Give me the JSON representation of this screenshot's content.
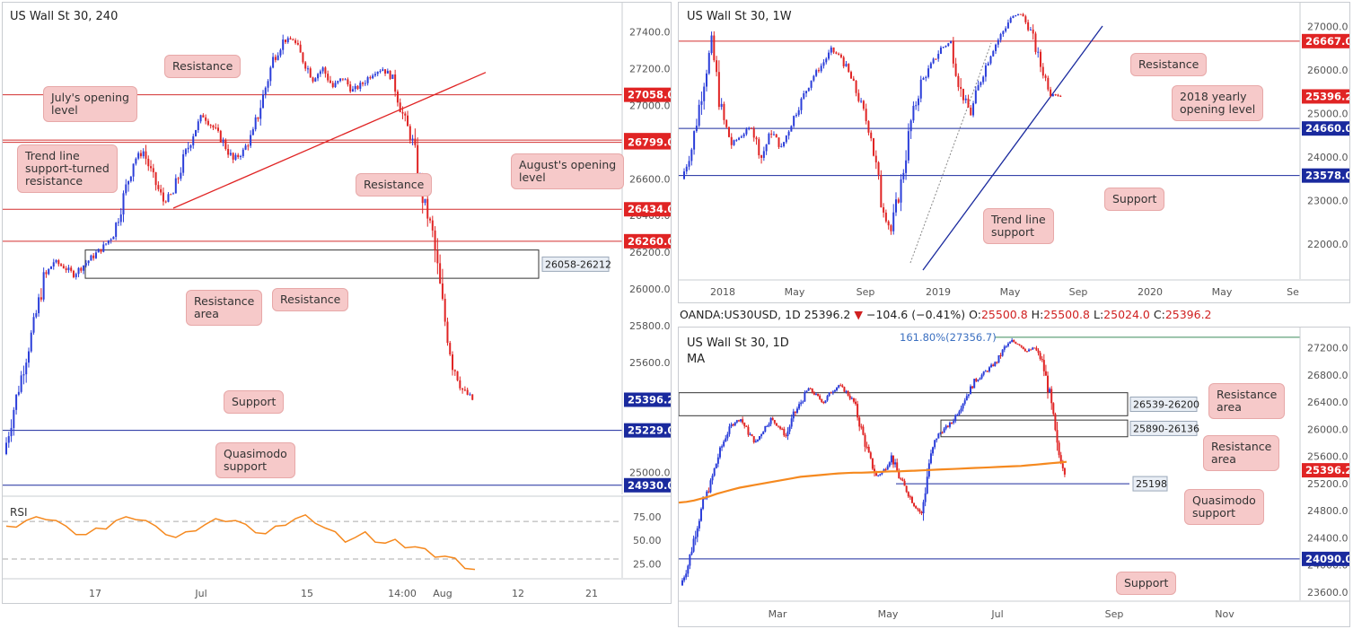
{
  "colors": {
    "up": "#2b3ed9",
    "down": "#e02424",
    "resistance": "#d32f2f",
    "support": "#1a2a9e",
    "ma": "#f5891f",
    "rsi": "#f5891f",
    "trend": "#e02424",
    "label_red": "#e02424",
    "label_blue": "#1a2a9e"
  },
  "chart_data": [
    {
      "id": "h4",
      "type": "line",
      "title": "US Wall St 30, 240",
      "ylim": [
        24880,
        27560
      ],
      "x_ticks": [
        "17",
        "Jul",
        "15",
        "14:00",
        "Aug",
        "12",
        "21"
      ],
      "y_ticks": [
        "27400.0",
        "27200.0",
        "27000.0",
        "26800.0",
        "26600.0",
        "26400.0",
        "26200.0",
        "26000.0",
        "25800.0",
        "25600.0",
        "25000.0"
      ],
      "levels": [
        {
          "value": 27058,
          "label": "27058.0",
          "kind": "resistance"
        },
        {
          "value": 26811,
          "label": "26811.0",
          "kind": "resistance"
        },
        {
          "value": 26799,
          "label": "26799.0",
          "kind": "resistance"
        },
        {
          "value": 26434,
          "label": "26434.0",
          "kind": "resistance"
        },
        {
          "value": 26260,
          "label": "26260.0",
          "kind": "resistance"
        },
        {
          "value": 25229,
          "label": "25229.0",
          "kind": "support"
        },
        {
          "value": 24930,
          "label": "24930.0",
          "kind": "support"
        }
      ],
      "current_price": {
        "value": 25396,
        "label": "25396.2"
      },
      "zone": {
        "label": "26058-26212",
        "low": 26058,
        "high": 26212
      },
      "series": [
        {
          "values": [
            25100,
            25350,
            25580,
            25800,
            26050,
            26150,
            26120,
            26080,
            26130,
            26180,
            26230,
            26300,
            26500,
            26700,
            26750,
            26600,
            26480,
            26520,
            26700,
            26850,
            26950,
            26880,
            26800,
            26700,
            26750,
            26850,
            27050,
            27250,
            27350,
            27360,
            27250,
            27150,
            27200,
            27100,
            27150,
            27080,
            27120,
            27180,
            27200,
            27150,
            26950,
            26800,
            26500,
            26300,
            25900,
            25600,
            25450,
            25396
          ]
        }
      ],
      "rsi": {
        "label": "RSI",
        "ylim": [
          10,
          95
        ],
        "ticks": [
          "75.00",
          "50.00",
          "25.00"
        ],
        "values": [
          62,
          66,
          70,
          72,
          74,
          70,
          62,
          58,
          55,
          60,
          64,
          70,
          72,
          74,
          70,
          62,
          58,
          52,
          56,
          62,
          66,
          70,
          72,
          70,
          64,
          60,
          56,
          62,
          68,
          72,
          74,
          70,
          62,
          56,
          50,
          52,
          56,
          50,
          46,
          48,
          44,
          42,
          38,
          34,
          32,
          28,
          22,
          18
        ]
      },
      "annotations": [
        {
          "text": "Resistance"
        },
        {
          "text": "July's opening\nlevel"
        },
        {
          "text": "Trend line\nsupport-turned\nresistance"
        },
        {
          "text": "Resistance"
        },
        {
          "text": "August's opening\nlevel"
        },
        {
          "text": "Resistance\narea"
        },
        {
          "text": "Resistance"
        },
        {
          "text": "Support"
        },
        {
          "text": "Quasimodo\nsupport"
        }
      ]
    },
    {
      "id": "w1",
      "type": "line",
      "title": "US Wall St 30, 1W",
      "ylim": [
        21200,
        27550
      ],
      "x_ticks": [
        "2018",
        "May",
        "Sep",
        "2019",
        "May",
        "Sep",
        "2020",
        "May",
        "Se"
      ],
      "y_ticks": [
        "27000.0",
        "26000.0",
        "25000.0",
        "24000.0",
        "23000.0",
        "22000.0"
      ],
      "levels": [
        {
          "value": 26667,
          "label": "26667.0",
          "kind": "resistance"
        },
        {
          "value": 24660,
          "label": "24660.0",
          "kind": "support"
        },
        {
          "value": 23578,
          "label": "23578.0",
          "kind": "support"
        }
      ],
      "current_price": {
        "value": 25396,
        "label": "25396.2"
      },
      "series": [
        {
          "values": [
            23500,
            24200,
            25500,
            26600,
            25000,
            24300,
            24500,
            24700,
            24000,
            24600,
            24200,
            24800,
            25300,
            25800,
            26100,
            26450,
            26300,
            25800,
            25200,
            24500,
            23000,
            22300,
            23400,
            24800,
            25700,
            26100,
            26500,
            26650,
            25500,
            25000,
            25800,
            26400,
            26800,
            27200,
            27300,
            26900,
            26100,
            25500,
            25396
          ]
        }
      ],
      "annotations": [
        {
          "text": "Resistance"
        },
        {
          "text": "2018 yearly\nopening level"
        },
        {
          "text": "Support"
        },
        {
          "text": "Trend line\nsupport"
        }
      ]
    },
    {
      "id": "d1",
      "type": "line",
      "title": "US Wall St 30, 1D",
      "subtitle": "MA",
      "ylim": [
        23480,
        27500
      ],
      "x_ticks": [
        "Mar",
        "May",
        "Jul",
        "Sep",
        "Nov"
      ],
      "y_ticks": [
        "27200.0",
        "26800.0",
        "26400.0",
        "26000.0",
        "25600.0",
        "25200.0",
        "24800.0",
        "24400.0",
        "24000.0",
        "23600.0"
      ],
      "levels": [
        {
          "value": 24090,
          "label": "24090.0",
          "kind": "support"
        }
      ],
      "current_price": {
        "value": 25396,
        "label": "25396.2"
      },
      "fib": {
        "label": "161.80%(27356.7)",
        "value": 27356.7
      },
      "zones": [
        {
          "label": "26539-26200",
          "low": 26200,
          "high": 26539
        },
        {
          "label": "25890-26136",
          "low": 25890,
          "high": 26136
        }
      ],
      "quasimodo": {
        "label": "25198",
        "value": 25198
      },
      "series": [
        {
          "values": [
            23700,
            24000,
            24500,
            24900,
            25200,
            25600,
            25900,
            26100,
            26150,
            25950,
            25800,
            26000,
            26150,
            26050,
            25900,
            26200,
            26400,
            26600,
            26500,
            26400,
            26550,
            26650,
            26550,
            26400,
            26000,
            25600,
            25300,
            25400,
            25600,
            25300,
            25100,
            24900,
            24750,
            25500,
            25900,
            26000,
            26100,
            26300,
            26500,
            26700,
            26800,
            26900,
            27000,
            27200,
            27300,
            27250,
            27150,
            27200,
            27000,
            26500,
            25700,
            25396
          ]
        }
      ],
      "ma": {
        "values": [
          24920,
          24930,
          24950,
          24980,
          25010,
          25050,
          25080,
          25110,
          25140,
          25160,
          25180,
          25200,
          25220,
          25240,
          25260,
          25280,
          25300,
          25310,
          25320,
          25330,
          25340,
          25350,
          25355,
          25360,
          25360,
          25365,
          25370,
          25375,
          25380,
          25380,
          25385,
          25390,
          25395,
          25400,
          25405,
          25410,
          25415,
          25420,
          25425,
          25430,
          25435,
          25440,
          25445,
          25450,
          25455,
          25460,
          25470,
          25480,
          25490,
          25500,
          25510,
          25520
        ]
      },
      "annotations": [
        {
          "text": "Resistance\narea"
        },
        {
          "text": "Resistance\narea"
        },
        {
          "text": "Quasimodo\nsupport"
        },
        {
          "text": "Support"
        }
      ]
    }
  ],
  "infobar": {
    "symbol": "OANDA:US30USD, 1D",
    "price": "25396.2",
    "change": "−104.6 (−0.41%)",
    "o_label": "O:",
    "o": "25500.8",
    "h_label": "H:",
    "h": "25500.8",
    "l_label": "L:",
    "l": "25024.0",
    "c_label": "C:",
    "c": "25396.2"
  }
}
